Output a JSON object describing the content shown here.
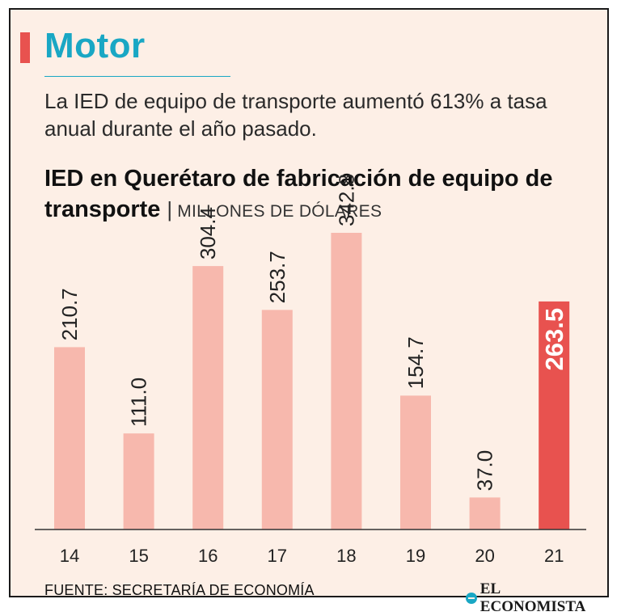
{
  "header": {
    "section": "Motor",
    "subtitle": "La IED de equipo de transporte aumentó 613% a tasa anual durante el año pasado."
  },
  "colors": {
    "accent": "#e8524f",
    "brand": "#19a7c4",
    "bar": "#f7b8ad",
    "bar_highlight": "#e8524f",
    "background": "#fdefe6"
  },
  "chart_data": {
    "type": "bar",
    "title": "IED en Querétaro de fabricación de equipo de transporte",
    "units": "MILLONES DE DÓLARES",
    "categories": [
      "14",
      "15",
      "16",
      "17",
      "18",
      "19",
      "20",
      "21"
    ],
    "values": [
      210.7,
      111.0,
      304.4,
      253.7,
      342.8,
      154.7,
      37.0,
      263.5
    ],
    "labels": [
      "210.7",
      "111.0",
      "304.4",
      "253.7",
      "342.8",
      "154.7",
      "37.0",
      "263.5"
    ],
    "highlight_index": 7,
    "xlabel": "",
    "ylabel": "",
    "ylim": [
      0,
      342.8
    ]
  },
  "footer": {
    "source": "FUENTE: SECRETARÍA DE ECONOMÍA",
    "logo_text": "EL ECONOMISTA",
    "logo_icon": "el-economista-logo-icon"
  }
}
